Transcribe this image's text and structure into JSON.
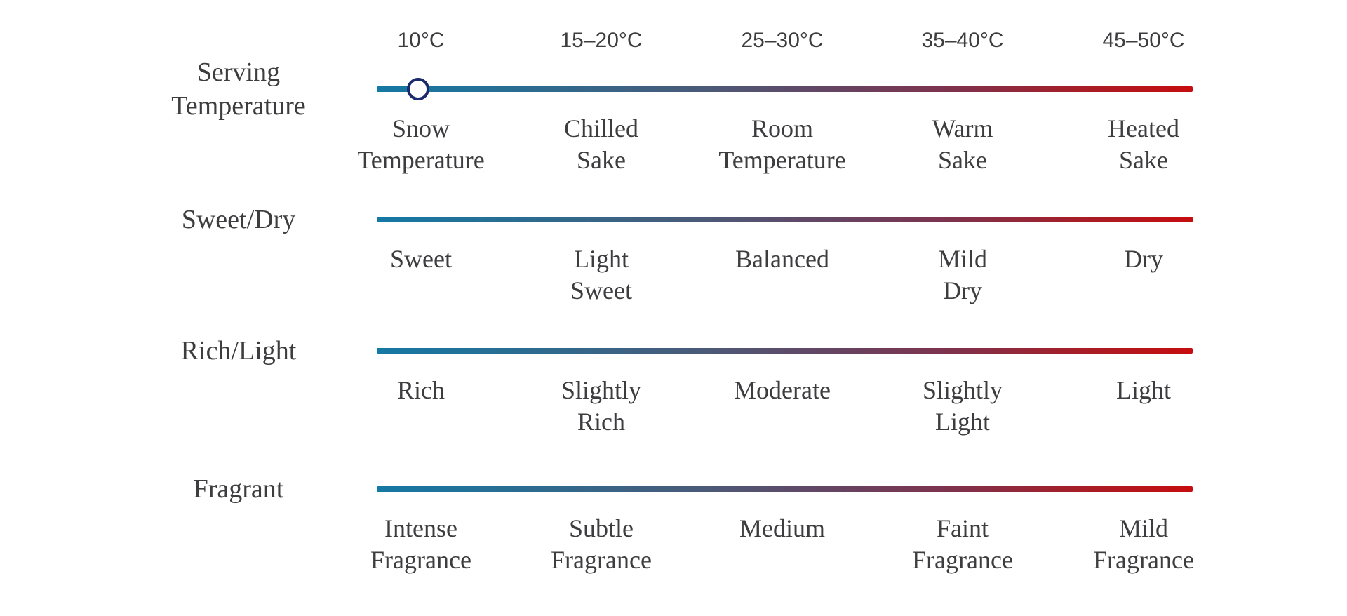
{
  "theme": {
    "background": "#ffffff",
    "text": "#3d3d3f",
    "marker-ring": "#1a2a6c",
    "marker-fill": "#ffffff",
    "g0": "#1479a4",
    "g1": "#30698c",
    "g2": "#4e5876",
    "g3": "#654462",
    "g4": "#82304a",
    "g5": "#a61e27",
    "g6": "#c60d10"
  },
  "scales": [
    {
      "left_label": "Serving\nTemperature",
      "ticks": [
        "10°C",
        "15–20°C",
        "25–30°C",
        "35–40°C",
        "45–50°C"
      ],
      "marker": {
        "at_tick": "10°C",
        "column_index": 0
      },
      "labels": [
        "Snow\nTemperature",
        "Chilled\nSake",
        "Room\nTemperature",
        "Warm\nSake",
        "Heated\nSake"
      ]
    },
    {
      "left_label": "Sweet/Dry",
      "labels": [
        "Sweet",
        "Light\nSweet",
        "Balanced",
        "Mild\nDry",
        "Dry"
      ]
    },
    {
      "left_label": "Rich/Light",
      "labels": [
        "Rich",
        "Slightly\nRich",
        "Moderate",
        "Slightly\nLight",
        "Light"
      ]
    },
    {
      "left_label": "Fragrant",
      "labels": [
        "Intense\nFragrance",
        "Subtle\nFragrance",
        "Medium",
        "Faint\nFragrance",
        "Mild\nFragrance"
      ]
    }
  ]
}
